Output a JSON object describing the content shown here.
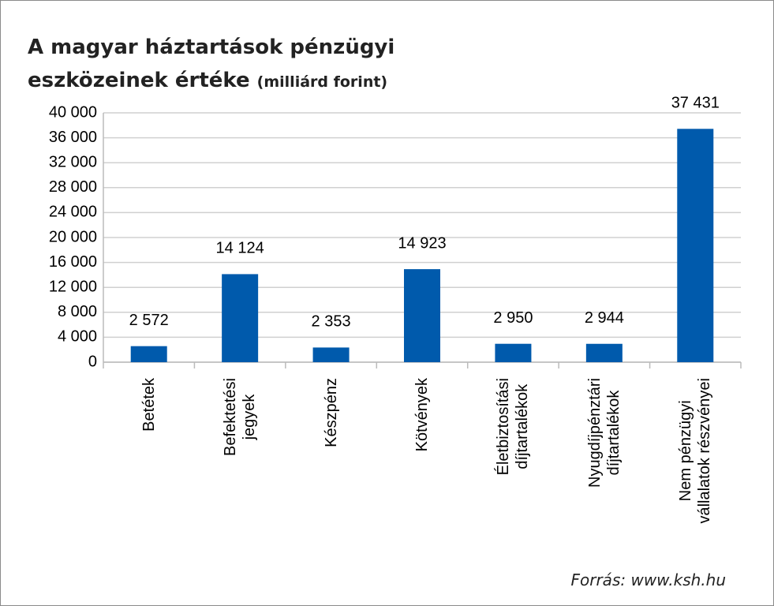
{
  "chart_data": {
    "type": "bar",
    "title": "A magyar háztartások pénzügyi eszközeinek értéke",
    "subtitle": "(milliárd forint)",
    "categories": [
      "Betétek",
      "Befektetési\njegyek",
      "Készpénz",
      "Kötvények",
      "Életbiztosítási\ndíjtartalékok",
      "Nyugdíjpénztári\ndíjtartalékok",
      "Nem pénzügyi\nvállalatok részvényei"
    ],
    "values": [
      2572,
      14124,
      2353,
      14923,
      2950,
      2944,
      37431
    ],
    "value_labels": [
      "2 572",
      "14 124",
      "2 353",
      "14 923",
      "2 950",
      "2 944",
      "37 431"
    ],
    "color": "#005aac",
    "ylim": [
      0,
      40000
    ],
    "yticks": [
      0,
      {
        "value": 4000,
        "label": "4 000"
      },
      {
        "value": 8000,
        "label": "8 000"
      },
      {
        "value": 12000,
        "label": "12 000"
      },
      {
        "value": 16000,
        "label": "16 000"
      },
      {
        "value": 20000,
        "label": "20 000"
      },
      {
        "value": 24000,
        "label": "24 000"
      },
      {
        "value": 28000,
        "label": "28 000"
      },
      {
        "value": 32000,
        "label": "32 000"
      },
      {
        "value": 36000,
        "label": "36 000"
      },
      {
        "value": 40000,
        "label": "40 000"
      }
    ],
    "grid": true,
    "source": "Forrás: www.ksh.hu"
  }
}
